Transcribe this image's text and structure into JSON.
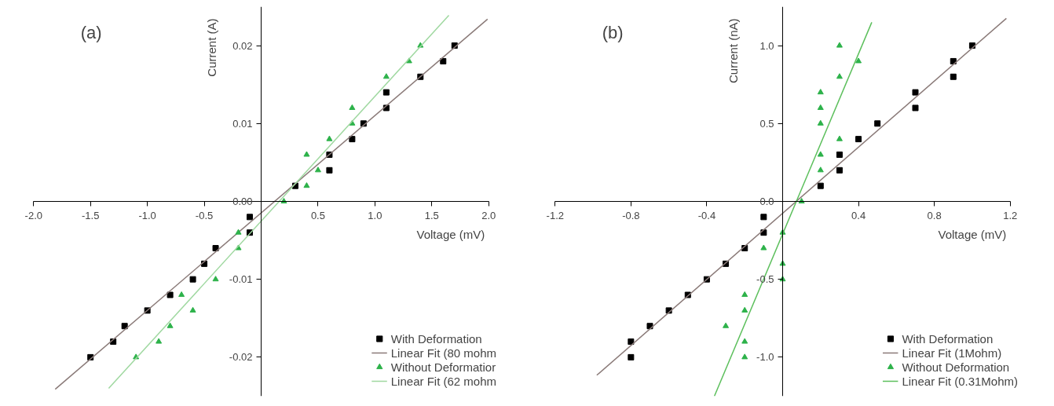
{
  "chart_data": [
    {
      "type": "scatter",
      "title": "(a)",
      "xlabel": "Voltage (mV)",
      "ylabel": "Current (A)",
      "xlim": [
        -2.0,
        2.0
      ],
      "ylim": [
        -0.025,
        0.025
      ],
      "xticks": [
        {
          "value": -2.0,
          "label": "-2.0"
        },
        {
          "value": -1.5,
          "label": "-1.5"
        },
        {
          "value": -1.0,
          "label": "-1.0"
        },
        {
          "value": -0.5,
          "label": "-0.5"
        },
        {
          "value": 0,
          "label": null
        },
        {
          "value": 0.5,
          "label": "0.5"
        },
        {
          "value": 1.0,
          "label": "1.0"
        },
        {
          "value": 1.5,
          "label": "1.5"
        },
        {
          "value": 2.0,
          "label": "2.0"
        }
      ],
      "yticks": [
        -0.02,
        -0.01,
        {
          "value": 0,
          "label": "0.00"
        },
        0.01,
        0.02
      ],
      "grid": false,
      "legend": "bottom right",
      "series": [
        {
          "name": "With Deformation",
          "marker": "square",
          "color": "#000000",
          "x": [
            -1.5,
            -1.3,
            -1.2,
            -1.0,
            -0.8,
            -0.6,
            -0.5,
            -0.4,
            -0.1,
            -0.1,
            0.3,
            0.6,
            0.6,
            0.8,
            0.9,
            1.1,
            1.1,
            1.4,
            1.6,
            1.7
          ],
          "values": [
            -0.02,
            -0.018,
            -0.016,
            -0.014,
            -0.012,
            -0.01,
            -0.008,
            -0.006,
            -0.004,
            -0.002,
            0.002,
            0.004,
            0.006,
            0.008,
            0.01,
            0.012,
            0.014,
            0.016,
            0.018,
            0.02
          ]
        },
        {
          "name": "Linear Fit (80 mohm",
          "type": "line",
          "color": "#8a7a78",
          "x": [
            -1.81,
            1.99
          ],
          "values": [
            -0.0241,
            0.0234
          ]
        },
        {
          "name": "Without Deformatior",
          "marker": "triangle",
          "color": "#2db24a",
          "x": [
            -1.1,
            -0.9,
            -0.8,
            -0.6,
            -0.7,
            -0.4,
            -0.2,
            -0.2,
            0.2,
            0.4,
            0.5,
            0.4,
            0.6,
            0.8,
            0.8,
            1.1,
            1.3,
            1.4
          ],
          "values": [
            -0.02,
            -0.018,
            -0.016,
            -0.014,
            -0.012,
            -0.01,
            -0.006,
            -0.004,
            0.0,
            0.002,
            0.004,
            0.006,
            0.008,
            0.01,
            0.012,
            0.016,
            0.018,
            0.02
          ]
        },
        {
          "name": "Linear Fit (62 mohm",
          "type": "line",
          "color": "#9fd8a0",
          "x": [
            -1.34,
            1.65
          ],
          "values": [
            -0.024,
            0.0239
          ]
        }
      ]
    },
    {
      "type": "scatter",
      "title": "(b)",
      "xlabel": "Voltage (mV)",
      "ylabel": "Current (nA)",
      "xlim": [
        -1.2,
        1.2
      ],
      "ylim": [
        -1.25,
        1.25
      ],
      "xticks": [
        {
          "value": -1.2,
          "label": "-1.2"
        },
        {
          "value": -0.8,
          "label": "-0.8"
        },
        {
          "value": -0.4,
          "label": "-0.4"
        },
        {
          "value": 0,
          "label": null
        },
        {
          "value": 0.4,
          "label": "0.4"
        },
        {
          "value": 0.8,
          "label": "0.8"
        },
        {
          "value": 1.2,
          "label": "1.2"
        }
      ],
      "yticks": [
        {
          "value": -1.0,
          "label": "-1.0"
        },
        -0.5,
        {
          "value": 0,
          "label": "0.0"
        },
        0.5,
        {
          "value": 1.0,
          "label": "1.0"
        }
      ],
      "grid": false,
      "legend": "bottom right",
      "series": [
        {
          "name": "With Deformation",
          "marker": "square",
          "color": "#000000",
          "x": [
            -0.8,
            -0.8,
            -0.7,
            -0.6,
            -0.5,
            -0.4,
            -0.3,
            -0.2,
            -0.1,
            -0.1,
            0.2,
            0.3,
            0.3,
            0.4,
            0.5,
            0.7,
            0.7,
            0.9,
            0.9,
            1.0
          ],
          "values": [
            -0.9,
            -1.0,
            -0.8,
            -0.7,
            -0.6,
            -0.5,
            -0.4,
            -0.3,
            -0.2,
            -0.1,
            0.1,
            0.2,
            0.3,
            0.4,
            0.5,
            0.6,
            0.7,
            0.8,
            0.9,
            1.0
          ]
        },
        {
          "name": "Linear Fit (1Mohm)",
          "type": "line",
          "color": "#8a7a78",
          "x": [
            -0.98,
            1.18
          ],
          "values": [
            -1.115,
            1.175
          ]
        },
        {
          "name": "Without Deformation",
          "marker": "triangle",
          "color": "#2db24a",
          "x": [
            0.0,
            0.0,
            0.0,
            -0.1,
            -0.2,
            -0.2,
            -0.2,
            -0.2,
            -0.3,
            0.1,
            0.2,
            0.2,
            0.2,
            0.2,
            0.2,
            0.3,
            0.3,
            0.3,
            0.4
          ],
          "values": [
            -0.2,
            -0.4,
            -0.5,
            -0.3,
            -0.6,
            -0.7,
            -0.9,
            -1.0,
            -0.8,
            0.0,
            0.2,
            0.3,
            0.5,
            0.6,
            0.7,
            0.4,
            0.8,
            1.0,
            0.9
          ]
        },
        {
          "name": "Linear Fit (0.31Mohm)",
          "type": "line",
          "color": "#5cbf5c",
          "x": [
            -0.36,
            0.47
          ],
          "values": [
            -1.25,
            1.15
          ]
        }
      ]
    }
  ]
}
